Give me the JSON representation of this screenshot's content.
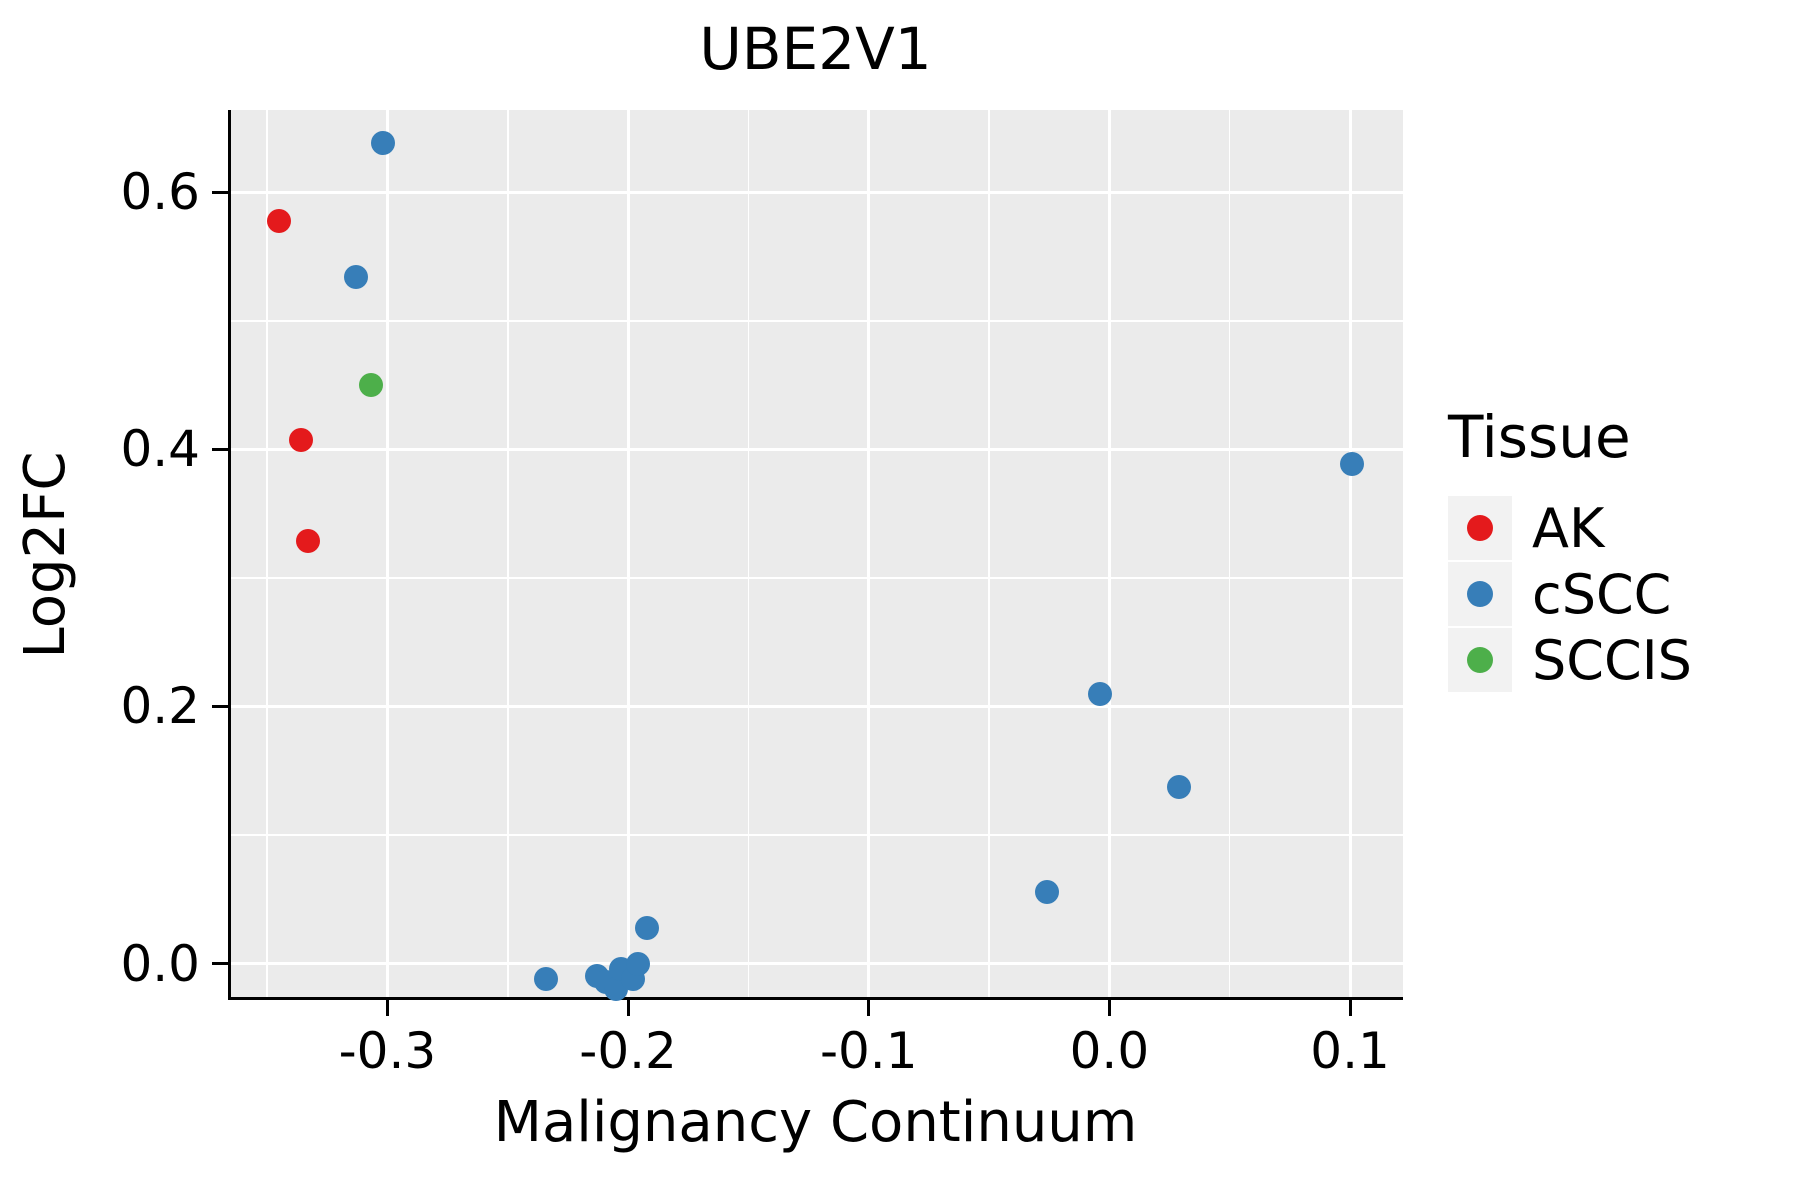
{
  "chart_data": {
    "type": "scatter",
    "title": "UBE2V1",
    "xlabel": "Malignancy Continuum",
    "ylabel": "Log2FC",
    "legend_title": "Tissue",
    "legend_position": "right",
    "grid": true,
    "xlim": [
      -0.365,
      0.122
    ],
    "ylim": [
      -0.026,
      0.664
    ],
    "x_ticks": [
      -0.3,
      -0.2,
      -0.1,
      0.0,
      0.1
    ],
    "y_ticks": [
      0.0,
      0.2,
      0.4,
      0.6
    ],
    "x_minor_step": 0.05,
    "y_minor_step": 0.1,
    "series": [
      {
        "name": "AK",
        "color": "#E41A1C",
        "points": [
          [
            -0.345,
            0.578
          ],
          [
            -0.336,
            0.407
          ],
          [
            -0.333,
            0.329
          ]
        ]
      },
      {
        "name": "cSCC",
        "color": "#377EB8",
        "points": [
          [
            -0.302,
            0.638
          ],
          [
            -0.313,
            0.534
          ],
          [
            0.101,
            0.389
          ],
          [
            -0.004,
            0.21
          ],
          [
            0.029,
            0.137
          ],
          [
            -0.026,
            0.056
          ],
          [
            -0.192,
            0.028
          ],
          [
            -0.234,
            -0.012
          ],
          [
            -0.213,
            -0.01
          ],
          [
            -0.209,
            -0.014
          ],
          [
            -0.205,
            -0.02
          ],
          [
            -0.203,
            -0.004
          ],
          [
            -0.198,
            -0.012
          ],
          [
            -0.196,
            0.0
          ]
        ]
      },
      {
        "name": "SCCIS",
        "color": "#4DAF4A",
        "points": [
          [
            -0.307,
            0.45
          ]
        ]
      }
    ]
  },
  "styles": {
    "panel_bg": "#EBEBEB",
    "grid_color": "#FFFFFF",
    "axis_color": "#000000",
    "legend_key_bg": "#F2F2F2",
    "text_color": "#000000"
  }
}
